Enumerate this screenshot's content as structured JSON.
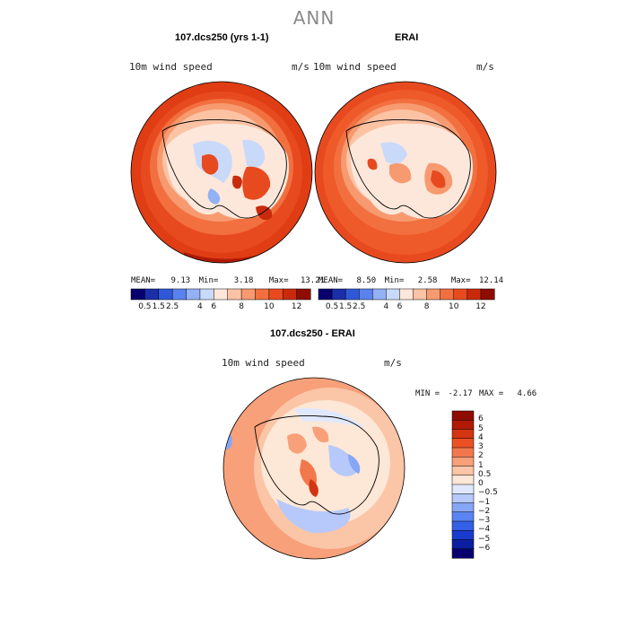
{
  "page": {
    "title": "ANN"
  },
  "panels": [
    {
      "id": "model",
      "title": "107.dcs250 (yrs 1-1)",
      "variable": "10m wind speed",
      "units": "m/s",
      "stats": {
        "mean_label": "MEAN=",
        "mean": "9.13",
        "min_label": "Min=",
        "min": "3.18",
        "max_label": "Max=",
        "max": "13.21"
      }
    },
    {
      "id": "obs",
      "title": "ERAI",
      "variable": "10m wind speed",
      "units": "m/s",
      "stats": {
        "mean_label": "MEAN=",
        "mean": "8.50",
        "min_label": "Min=",
        "min": "2.58",
        "max_label": "Max=",
        "max": "12.14"
      }
    },
    {
      "id": "diff",
      "title": "107.dcs250 - ERAI",
      "variable": "10m wind speed",
      "units": "m/s",
      "stats": {
        "min_label": "MIN =",
        "min": "-2.17",
        "max_label": "MAX =",
        "max": "4.66"
      }
    }
  ],
  "colorbars": {
    "field": {
      "colors": [
        "#08006e",
        "#1a2fa8",
        "#2f58d8",
        "#5a82ef",
        "#93b1f5",
        "#c9d9fa",
        "#fde7da",
        "#fbc3a4",
        "#f79a70",
        "#f2703f",
        "#e84a1f",
        "#c92a0c",
        "#8e0c00"
      ],
      "tick_labels": [
        "0.5",
        "1.5",
        "2.5",
        "4",
        "6",
        "8",
        "10",
        "12"
      ]
    },
    "diff": {
      "colors": [
        "#08006e",
        "#0b1fa0",
        "#1a3ccd",
        "#3360e6",
        "#5a84f1",
        "#86a6f6",
        "#b6c9fa",
        "#e0e8fd",
        "#fde7d6",
        "#fbc5a7",
        "#f8a07a",
        "#f3774c",
        "#eb5124",
        "#d33411",
        "#b01a04",
        "#8e0c00"
      ],
      "tick_labels": [
        "6",
        "5",
        "4",
        "3",
        "2",
        "1",
        "0.5",
        "0",
        "−0.5",
        "−1",
        "−2",
        "−3",
        "−4",
        "−5",
        "−6"
      ]
    }
  }
}
